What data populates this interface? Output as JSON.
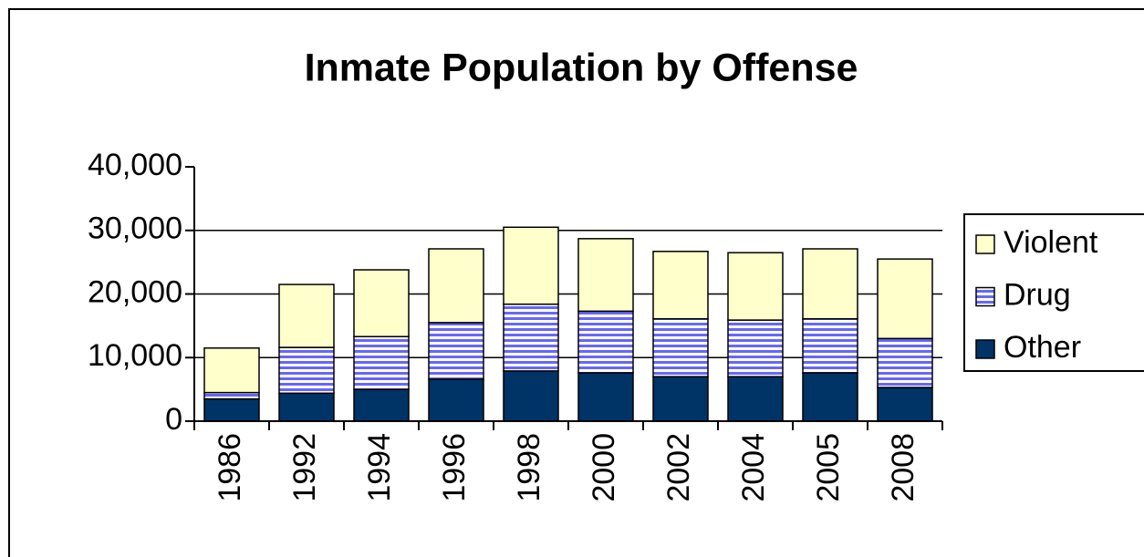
{
  "chart_data": {
    "type": "stacked_bar",
    "title": "Inmate Population by Offense",
    "categories": [
      "1986",
      "1992",
      "1994",
      "1996",
      "1998",
      "2000",
      "2002",
      "2004",
      "2005",
      "2008"
    ],
    "series": [
      {
        "name": "Other",
        "color": "#003366",
        "values": [
          3500,
          4400,
          5000,
          6600,
          7900,
          7600,
          7000,
          7000,
          7600,
          5300
        ]
      },
      {
        "name": "Drug",
        "color": "#6666ff",
        "pattern": "horizontal-stripes",
        "values": [
          1000,
          7200,
          8300,
          8900,
          10500,
          9700,
          9100,
          8900,
          8500,
          7700
        ]
      },
      {
        "name": "Violent",
        "color": "#ffffcc",
        "values": [
          7000,
          9900,
          10500,
          11600,
          12100,
          11400,
          10600,
          10600,
          11000,
          12500
        ]
      }
    ],
    "ylim": [
      0,
      40000
    ],
    "yticks": [
      0,
      {
        "value": 10000,
        "label": "10,000"
      },
      {
        "value": 20000,
        "label": "20,000"
      },
      {
        "value": 30000,
        "label": "30,000"
      },
      {
        "value": 40000,
        "label": "40,000"
      }
    ],
    "grid": true,
    "legend": "right"
  }
}
